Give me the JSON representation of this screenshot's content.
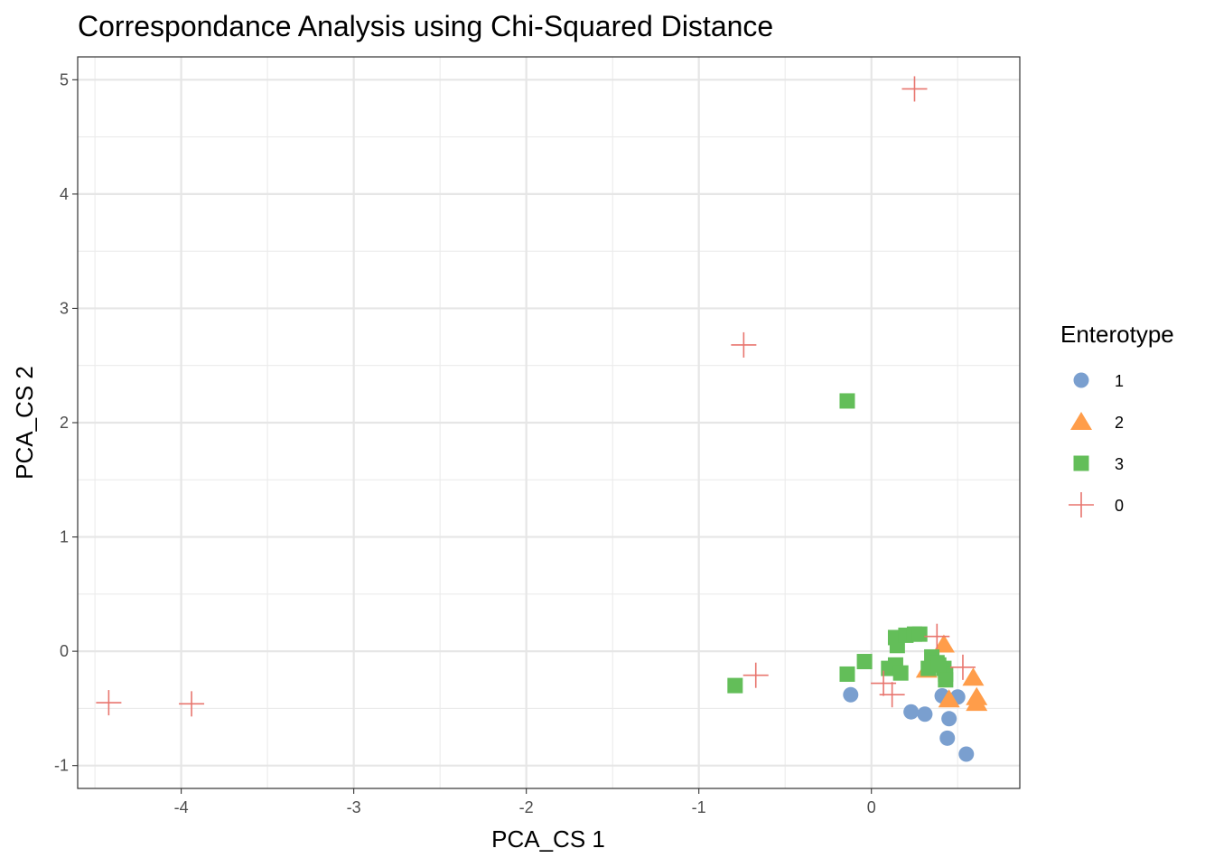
{
  "chart_data": {
    "type": "scatter",
    "title": "Correspondance Analysis using Chi-Squared Distance",
    "xlabel": "PCA_CS 1",
    "ylabel": "PCA_CS 2",
    "xlim": [
      -4.6,
      0.86
    ],
    "ylim": [
      -1.2,
      5.2
    ],
    "x_ticks": [
      -4,
      -3,
      -2,
      -1,
      0
    ],
    "x_tick_labels": [
      "-4",
      "-3",
      "-2",
      "-1",
      "0"
    ],
    "y_ticks": [
      -1,
      0,
      1,
      2,
      3,
      4,
      5
    ],
    "y_tick_labels": [
      "-1",
      "0",
      "1",
      "2",
      "3",
      "4",
      "5"
    ],
    "grid": true,
    "legend": {
      "title": "Enterotype",
      "position": "right"
    },
    "series": [
      {
        "name": "1",
        "shape": "circle",
        "color": "#7A9FCF",
        "points": [
          [
            -0.12,
            -0.38
          ],
          [
            0.23,
            -0.53
          ],
          [
            0.31,
            -0.55
          ],
          [
            0.41,
            -0.39
          ],
          [
            0.45,
            -0.59
          ],
          [
            0.44,
            -0.76
          ],
          [
            0.5,
            -0.4
          ],
          [
            0.55,
            -0.9
          ]
        ]
      },
      {
        "name": "2",
        "shape": "triangle",
        "color": "#FF9D4A",
        "points": [
          [
            0.32,
            -0.16
          ],
          [
            0.42,
            0.06
          ],
          [
            0.45,
            -0.42
          ],
          [
            0.59,
            -0.23
          ],
          [
            0.61,
            -0.4
          ],
          [
            0.61,
            -0.45
          ]
        ]
      },
      {
        "name": "3",
        "shape": "square",
        "color": "#63BE59",
        "points": [
          [
            -0.79,
            -0.3
          ],
          [
            -0.14,
            2.19
          ],
          [
            -0.14,
            -0.2
          ],
          [
            -0.04,
            -0.09
          ],
          [
            0.1,
            -0.15
          ],
          [
            0.14,
            -0.12
          ],
          [
            0.17,
            -0.19
          ],
          [
            0.15,
            0.05
          ],
          [
            0.14,
            0.12
          ],
          [
            0.2,
            0.14
          ],
          [
            0.25,
            0.15
          ],
          [
            0.28,
            0.15
          ],
          [
            0.35,
            -0.05
          ],
          [
            0.38,
            -0.1
          ],
          [
            0.33,
            -0.15
          ],
          [
            0.42,
            -0.15
          ],
          [
            0.43,
            -0.2
          ],
          [
            0.43,
            -0.25
          ],
          [
            0.39,
            -0.12
          ]
        ]
      },
      {
        "name": "0",
        "shape": "plus",
        "color": "#E8756E",
        "points": [
          [
            -4.42,
            -0.45
          ],
          [
            -3.94,
            -0.46
          ],
          [
            -0.74,
            2.68
          ],
          [
            -0.67,
            -0.21
          ],
          [
            0.25,
            4.92
          ],
          [
            0.07,
            -0.28
          ],
          [
            0.12,
            -0.38
          ],
          [
            0.38,
            0.13
          ],
          [
            0.53,
            -0.14
          ]
        ]
      }
    ]
  }
}
